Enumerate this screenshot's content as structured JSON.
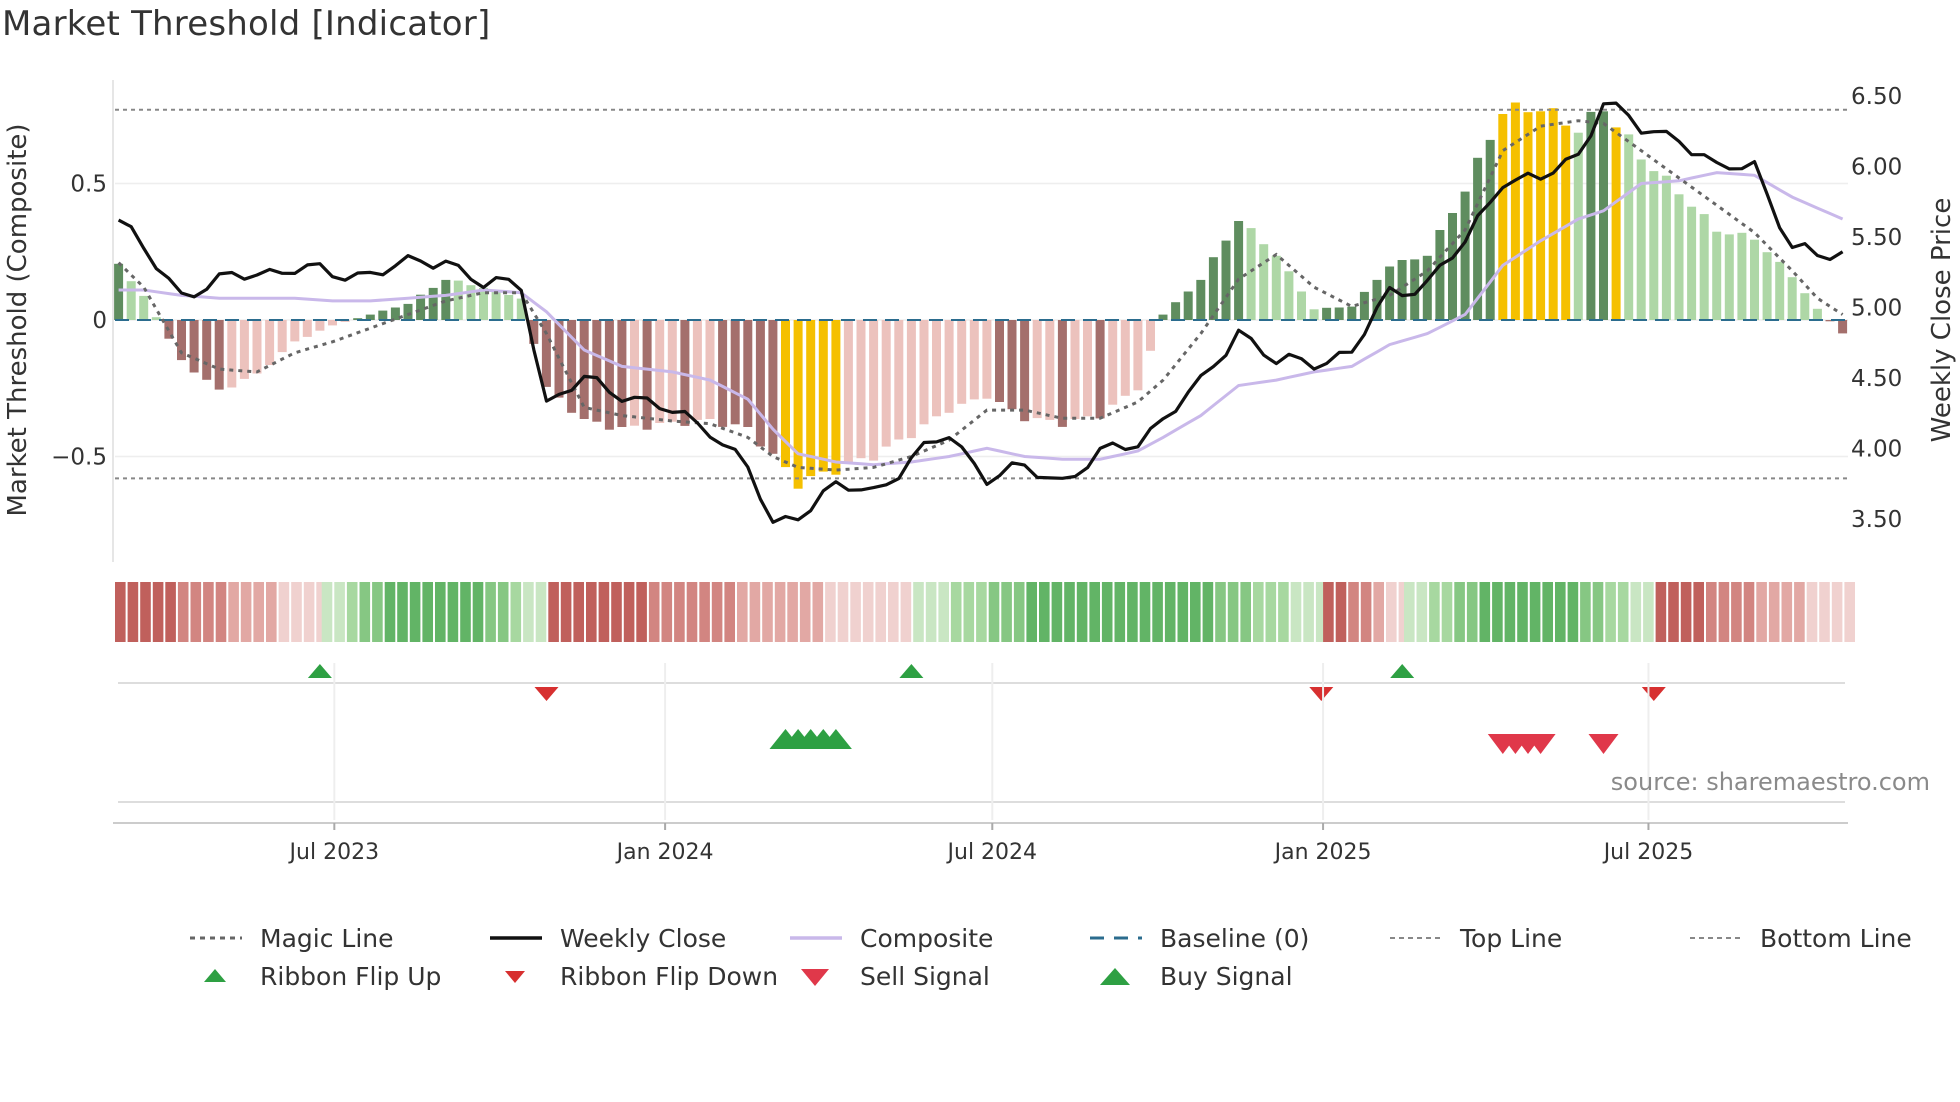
{
  "title": "Market Threshold [Indicator]",
  "source": "source: sharemaestro.com",
  "colors": {
    "weekly_close": "#111111",
    "magic_line": "#666666",
    "composite": "#c9b8ea",
    "baseline": "#2b6c8e",
    "threshold_lines": "#888888",
    "bar_pos_strong": "#5f8d5f",
    "bar_pos_weak": "#aed7a6",
    "bar_neg_strong": "#a46f6c",
    "bar_neg_weak": "#ecc2bd",
    "bar_extreme": "#f5c000",
    "signal_up": "#2ea043",
    "signal_down": "#d73030",
    "sell_signal": "#e0384a"
  },
  "chart_data": {
    "type": "bar",
    "x_range": [
      "2023-03-01",
      "2025-10-20"
    ],
    "x_ticks": [
      {
        "label": "Jul 2023",
        "date": "2023-07-01"
      },
      {
        "label": "Jan 2024",
        "date": "2024-01-01"
      },
      {
        "label": "Jul 2024",
        "date": "2024-07-01"
      },
      {
        "label": "Jan 2025",
        "date": "2025-01-01"
      },
      {
        "label": "Jul 2025",
        "date": "2025-07-01"
      }
    ],
    "left_axis": {
      "label": "Market Threshold (Composite)",
      "ticks": [
        {
          "v": 0.5,
          "label": "0.5"
        },
        {
          "v": 0,
          "label": "0"
        },
        {
          "v": -0.5,
          "label": "−0.5"
        }
      ],
      "range": [
        -0.88,
        0.88
      ]
    },
    "right_axis": {
      "label": "Weekly Close Price",
      "ticks": [
        "3.50",
        "4.00",
        "4.50",
        "5.00",
        "5.50",
        "6.00",
        "6.50"
      ],
      "range": [
        3.2,
        6.75
      ]
    },
    "top_line": 0.77,
    "bottom_line": -0.58,
    "baseline": 0,
    "anchors": [
      [
        "2023-03-03",
        0.2,
        5.62,
        0.11,
        0.21
      ],
      [
        "2023-03-17",
        0.09,
        5.4,
        0.11,
        0.12
      ],
      [
        "2023-04-07",
        -0.15,
        5.1,
        0.09,
        -0.12
      ],
      [
        "2023-04-28",
        -0.26,
        5.18,
        0.08,
        -0.18
      ],
      [
        "2023-05-19",
        -0.2,
        5.25,
        0.08,
        -0.19
      ],
      [
        "2023-06-09",
        -0.08,
        5.28,
        0.08,
        -0.12
      ],
      [
        "2023-06-30",
        -0.02,
        5.23,
        0.07,
        -0.08
      ],
      [
        "2023-07-21",
        0.02,
        5.25,
        0.07,
        -0.03
      ],
      [
        "2023-08-11",
        0.06,
        5.3,
        0.08,
        0.02
      ],
      [
        "2023-09-01",
        0.15,
        5.35,
        0.09,
        0.07
      ],
      [
        "2023-09-22",
        0.12,
        5.15,
        0.11,
        0.1
      ],
      [
        "2023-10-13",
        0.08,
        5.17,
        0.1,
        0.1
      ],
      [
        "2023-10-27",
        -0.25,
        4.32,
        0.03,
        -0.05
      ],
      [
        "2023-11-17",
        -0.37,
        4.48,
        -0.11,
        -0.32
      ],
      [
        "2023-12-08",
        -0.4,
        4.4,
        -0.17,
        -0.35
      ],
      [
        "2024-01-05",
        -0.38,
        4.25,
        -0.19,
        -0.37
      ],
      [
        "2024-01-26",
        -0.37,
        4.15,
        -0.22,
        -0.38
      ],
      [
        "2024-02-16",
        -0.4,
        3.85,
        -0.29,
        -0.43
      ],
      [
        "2024-03-01",
        -0.5,
        3.45,
        -0.4,
        -0.5
      ],
      [
        "2024-03-15",
        -0.6,
        3.55,
        -0.49,
        -0.54
      ],
      [
        "2024-04-05",
        -0.55,
        3.72,
        -0.52,
        -0.55
      ],
      [
        "2024-04-26",
        -0.5,
        3.7,
        -0.53,
        -0.54
      ],
      [
        "2024-05-17",
        -0.42,
        3.92,
        -0.52,
        -0.5
      ],
      [
        "2024-06-07",
        -0.33,
        4.1,
        -0.5,
        -0.44
      ],
      [
        "2024-06-28",
        -0.28,
        3.8,
        -0.47,
        -0.33
      ],
      [
        "2024-07-19",
        -0.36,
        3.85,
        -0.5,
        -0.33
      ],
      [
        "2024-08-09",
        -0.38,
        3.78,
        -0.51,
        -0.36
      ],
      [
        "2024-08-30",
        -0.35,
        3.95,
        -0.51,
        -0.36
      ],
      [
        "2024-09-20",
        -0.25,
        4.05,
        -0.48,
        -0.3
      ],
      [
        "2024-10-04",
        0.02,
        4.22,
        -0.43,
        -0.22
      ],
      [
        "2024-10-25",
        0.15,
        4.45,
        -0.35,
        -0.05
      ],
      [
        "2024-11-15",
        0.37,
        4.85,
        -0.24,
        0.15
      ],
      [
        "2024-12-06",
        0.24,
        4.6,
        -0.22,
        0.24
      ],
      [
        "2024-12-27",
        0.04,
        4.62,
        -0.19,
        0.12
      ],
      [
        "2025-01-17",
        0.05,
        4.68,
        -0.17,
        0.05
      ],
      [
        "2025-02-07",
        0.2,
        5.1,
        -0.09,
        0.09
      ],
      [
        "2025-02-28",
        0.24,
        5.18,
        -0.05,
        0.18
      ],
      [
        "2025-03-21",
        0.48,
        5.45,
        0.02,
        0.33
      ],
      [
        "2025-04-11",
        0.77,
        5.92,
        0.2,
        0.62
      ],
      [
        "2025-05-02",
        0.78,
        5.9,
        0.29,
        0.71
      ],
      [
        "2025-05-23",
        0.7,
        6.08,
        0.37,
        0.73
      ],
      [
        "2025-06-06",
        0.78,
        6.48,
        0.4,
        0.72
      ],
      [
        "2025-06-27",
        0.6,
        6.25,
        0.5,
        0.62
      ],
      [
        "2025-07-18",
        0.47,
        6.22,
        0.51,
        0.52
      ],
      [
        "2025-08-08",
        0.33,
        5.97,
        0.54,
        0.42
      ],
      [
        "2025-08-29",
        0.3,
        6.02,
        0.53,
        0.32
      ],
      [
        "2025-09-19",
        0.16,
        5.42,
        0.45,
        0.18
      ],
      [
        "2025-10-03",
        0.04,
        5.35,
        0.41,
        0.08
      ],
      [
        "2025-10-17",
        -0.05,
        5.4,
        0.37,
        0.02
      ]
    ],
    "anchor_fields": [
      "date",
      "composite_bar",
      "weekly_close",
      "composite_line",
      "magic_line"
    ],
    "extreme_periods": [
      [
        "2024-03-08",
        "2024-04-05"
      ],
      [
        "2025-04-11",
        "2025-05-16"
      ],
      [
        "2025-06-13",
        "2025-06-13"
      ]
    ],
    "ribbon_segments": [
      {
        "from": "2023-03-01",
        "to": "2023-06-23",
        "state": "negative"
      },
      {
        "from": "2023-06-24",
        "to": "2023-10-27",
        "state": "positive"
      },
      {
        "from": "2023-10-28",
        "to": "2024-05-17",
        "state": "negative"
      },
      {
        "from": "2024-05-18",
        "to": "2024-12-31",
        "state": "positive"
      },
      {
        "from": "2025-01-01",
        "to": "2025-02-14",
        "state": "negative"
      },
      {
        "from": "2025-02-15",
        "to": "2025-07-04",
        "state": "positive"
      },
      {
        "from": "2025-07-05",
        "to": "2025-10-20",
        "state": "negative"
      }
    ],
    "ribbon_flip_up": [
      "2023-06-23",
      "2024-05-17",
      "2025-02-14"
    ],
    "ribbon_flip_down": [
      "2023-10-27",
      "2024-12-31",
      "2025-07-04"
    ],
    "buy_signals": [
      "2024-03-08",
      "2024-03-15",
      "2024-03-22",
      "2024-03-29",
      "2024-04-05"
    ],
    "sell_signals": [
      "2025-04-11",
      "2025-04-18",
      "2025-04-25",
      "2025-05-02",
      "2025-06-06"
    ]
  },
  "legend": [
    {
      "key": "magic",
      "label": "Magic Line",
      "symbol": "dotted-line"
    },
    {
      "key": "weekly",
      "label": "Weekly Close",
      "symbol": "solid-line"
    },
    {
      "key": "composite",
      "label": "Composite",
      "symbol": "light-line"
    },
    {
      "key": "baseline",
      "label": "Baseline (0)",
      "symbol": "dashed-line"
    },
    {
      "key": "top",
      "label": "Top Line",
      "symbol": "thin-dashed-line"
    },
    {
      "key": "bottom",
      "label": "Bottom Line",
      "symbol": "thin-dashed-line"
    },
    {
      "key": "flipup",
      "label": "Ribbon Flip Up",
      "symbol": "triangle-up-small"
    },
    {
      "key": "flipdown",
      "label": "Ribbon Flip Down",
      "symbol": "triangle-down-small"
    },
    {
      "key": "sell",
      "label": "Sell Signal",
      "symbol": "triangle-down-large"
    },
    {
      "key": "buy",
      "label": "Buy Signal",
      "symbol": "triangle-up-large"
    }
  ]
}
